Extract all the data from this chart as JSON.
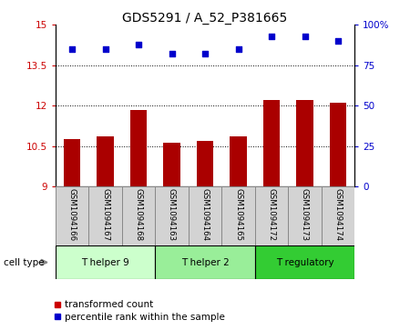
{
  "title": "GDS5291 / A_52_P381665",
  "samples": [
    "GSM1094166",
    "GSM1094167",
    "GSM1094168",
    "GSM1094163",
    "GSM1094164",
    "GSM1094165",
    "GSM1094172",
    "GSM1094173",
    "GSM1094174"
  ],
  "bar_values": [
    10.75,
    10.85,
    11.85,
    10.63,
    10.7,
    10.85,
    12.2,
    12.22,
    12.1
  ],
  "percentile_values": [
    85,
    85,
    88,
    82,
    82,
    85,
    93,
    93,
    90
  ],
  "bar_color": "#aa0000",
  "dot_color": "#0000cc",
  "ylim_left": [
    9,
    15
  ],
  "ylim_right": [
    0,
    100
  ],
  "yticks_left": [
    9,
    10.5,
    12,
    13.5,
    15
  ],
  "ytick_labels_left": [
    "9",
    "10.5",
    "12",
    "13.5",
    "15"
  ],
  "yticks_right": [
    0,
    25,
    50,
    75,
    100
  ],
  "ytick_labels_right": [
    "0",
    "25",
    "50",
    "75",
    "100%"
  ],
  "groups": [
    {
      "label": "T helper 9",
      "samples": [
        0,
        1,
        2
      ],
      "color": "#ccffcc"
    },
    {
      "label": "T helper 2",
      "samples": [
        3,
        4,
        5
      ],
      "color": "#99ee99"
    },
    {
      "label": "T regulatory",
      "samples": [
        6,
        7,
        8
      ],
      "color": "#33cc33"
    }
  ],
  "cell_type_label": "cell type",
  "legend_items": [
    {
      "label": "transformed count",
      "color": "#cc0000",
      "marker": "s"
    },
    {
      "label": "percentile rank within the sample",
      "color": "#0000cc",
      "marker": "s"
    }
  ],
  "background_color": "#ffffff",
  "bar_width": 0.5,
  "tick_label_color_left": "#cc0000",
  "tick_label_color_right": "#0000cc",
  "sample_box_color": "#d3d3d3",
  "sample_box_edge": "#888888"
}
